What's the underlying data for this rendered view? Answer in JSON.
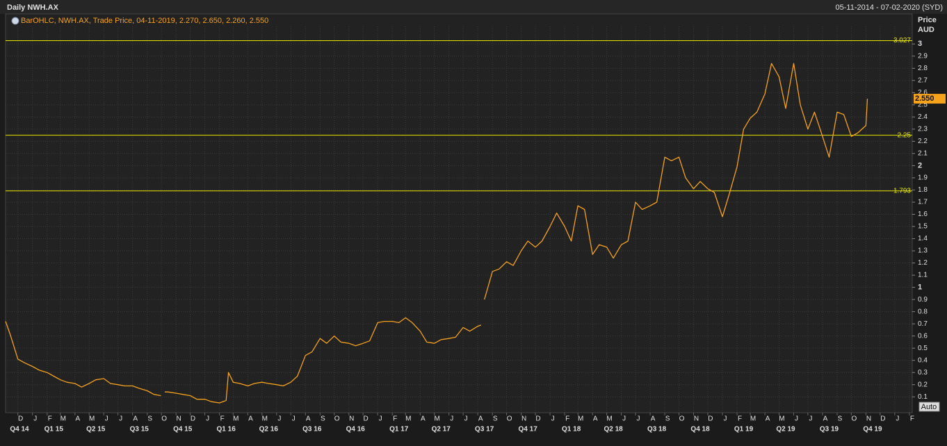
{
  "chart_data": {
    "type": "line",
    "title": "Daily NWH.AX",
    "date_range": "05-11-2014 - 07-02-2020 (SYD)",
    "legend_text": "BarOHLC, NWH.AX, Trade Price, 04-11-2019, 2.270, 2.650, 2.260, 2.550",
    "y_axis_title": [
      "Price",
      "AUD"
    ],
    "button": "Auto",
    "grid": true,
    "xlim": [
      "2014-11-05",
      "2020-02-07"
    ],
    "ylim": [
      0.05,
      3.11
    ],
    "yticks": [
      0.1,
      0.2,
      0.3,
      0.4,
      0.5,
      0.6,
      0.7,
      0.8,
      0.9,
      1,
      1.1,
      1.2,
      1.3,
      1.4,
      1.5,
      1.6,
      1.7,
      1.8,
      1.9,
      2,
      2.1,
      2.2,
      2.3,
      2.4,
      2.5,
      2.6,
      2.7,
      2.8,
      2.9,
      3
    ],
    "hlines": [
      3.027,
      2.25,
      1.793
    ],
    "hline_color": "#e6e600",
    "last_price": {
      "value": 2.55,
      "label": "2.550"
    },
    "month_ticks": [
      {
        "value": "2014-12-01",
        "label": "D"
      },
      {
        "value": "2015-01-01",
        "label": "J"
      },
      {
        "value": "2015-02-01",
        "label": "F"
      },
      {
        "value": "2015-03-01",
        "label": "M"
      },
      {
        "value": "2015-04-01",
        "label": "A"
      },
      {
        "value": "2015-05-01",
        "label": "M"
      },
      {
        "value": "2015-06-01",
        "label": "J"
      },
      {
        "value": "2015-07-01",
        "label": "J"
      },
      {
        "value": "2015-08-01",
        "label": "A"
      },
      {
        "value": "2015-09-01",
        "label": "S"
      },
      {
        "value": "2015-10-01",
        "label": "O"
      },
      {
        "value": "2015-11-01",
        "label": "N"
      },
      {
        "value": "2015-12-01",
        "label": "D"
      },
      {
        "value": "2016-01-01",
        "label": "J"
      },
      {
        "value": "2016-02-01",
        "label": "F"
      },
      {
        "value": "2016-03-01",
        "label": "M"
      },
      {
        "value": "2016-04-01",
        "label": "A"
      },
      {
        "value": "2016-05-01",
        "label": "M"
      },
      {
        "value": "2016-06-01",
        "label": "J"
      },
      {
        "value": "2016-07-01",
        "label": "J"
      },
      {
        "value": "2016-08-01",
        "label": "A"
      },
      {
        "value": "2016-09-01",
        "label": "S"
      },
      {
        "value": "2016-10-01",
        "label": "O"
      },
      {
        "value": "2016-11-01",
        "label": "N"
      },
      {
        "value": "2016-12-01",
        "label": "D"
      },
      {
        "value": "2017-01-01",
        "label": "J"
      },
      {
        "value": "2017-02-01",
        "label": "F"
      },
      {
        "value": "2017-03-01",
        "label": "M"
      },
      {
        "value": "2017-04-01",
        "label": "A"
      },
      {
        "value": "2017-05-01",
        "label": "M"
      },
      {
        "value": "2017-06-01",
        "label": "J"
      },
      {
        "value": "2017-07-01",
        "label": "J"
      },
      {
        "value": "2017-08-01",
        "label": "A"
      },
      {
        "value": "2017-09-01",
        "label": "S"
      },
      {
        "value": "2017-10-01",
        "label": "O"
      },
      {
        "value": "2017-11-01",
        "label": "N"
      },
      {
        "value": "2017-12-01",
        "label": "D"
      },
      {
        "value": "2018-01-01",
        "label": "J"
      },
      {
        "value": "2018-02-01",
        "label": "F"
      },
      {
        "value": "2018-03-01",
        "label": "M"
      },
      {
        "value": "2018-04-01",
        "label": "A"
      },
      {
        "value": "2018-05-01",
        "label": "M"
      },
      {
        "value": "2018-06-01",
        "label": "J"
      },
      {
        "value": "2018-07-01",
        "label": "J"
      },
      {
        "value": "2018-08-01",
        "label": "A"
      },
      {
        "value": "2018-09-01",
        "label": "S"
      },
      {
        "value": "2018-10-01",
        "label": "O"
      },
      {
        "value": "2018-11-01",
        "label": "N"
      },
      {
        "value": "2018-12-01",
        "label": "D"
      },
      {
        "value": "2019-01-01",
        "label": "J"
      },
      {
        "value": "2019-02-01",
        "label": "F"
      },
      {
        "value": "2019-03-01",
        "label": "M"
      },
      {
        "value": "2019-04-01",
        "label": "A"
      },
      {
        "value": "2019-05-01",
        "label": "M"
      },
      {
        "value": "2019-06-01",
        "label": "J"
      },
      {
        "value": "2019-07-01",
        "label": "J"
      },
      {
        "value": "2019-08-01",
        "label": "A"
      },
      {
        "value": "2019-09-01",
        "label": "S"
      },
      {
        "value": "2019-10-01",
        "label": "O"
      },
      {
        "value": "2019-11-01",
        "label": "N"
      },
      {
        "value": "2019-12-01",
        "label": "D"
      },
      {
        "value": "2020-01-01",
        "label": "J"
      },
      {
        "value": "2020-02-01",
        "label": "F"
      }
    ],
    "quarter_ticks": [
      {
        "value": "2014-11-20",
        "label": "Q4 14"
      },
      {
        "value": "2015-02-15",
        "label": "Q1 15"
      },
      {
        "value": "2015-05-15",
        "label": "Q2 15"
      },
      {
        "value": "2015-08-15",
        "label": "Q3 15"
      },
      {
        "value": "2015-11-15",
        "label": "Q4 15"
      },
      {
        "value": "2016-02-15",
        "label": "Q1 16"
      },
      {
        "value": "2016-05-15",
        "label": "Q2 16"
      },
      {
        "value": "2016-08-15",
        "label": "Q3 16"
      },
      {
        "value": "2016-11-15",
        "label": "Q4 16"
      },
      {
        "value": "2017-02-15",
        "label": "Q1 17"
      },
      {
        "value": "2017-05-15",
        "label": "Q2 17"
      },
      {
        "value": "2017-08-15",
        "label": "Q3 17"
      },
      {
        "value": "2017-11-15",
        "label": "Q4 17"
      },
      {
        "value": "2018-02-15",
        "label": "Q1 18"
      },
      {
        "value": "2018-05-15",
        "label": "Q2 18"
      },
      {
        "value": "2018-08-15",
        "label": "Q3 18"
      },
      {
        "value": "2018-11-15",
        "label": "Q4 18"
      },
      {
        "value": "2019-02-15",
        "label": "Q1 19"
      },
      {
        "value": "2019-05-15",
        "label": "Q2 19"
      },
      {
        "value": "2019-08-15",
        "label": "Q3 19"
      },
      {
        "value": "2019-11-15",
        "label": "Q4 19"
      }
    ],
    "series": [
      {
        "name": "NWH.AX",
        "color": "#f7a21b",
        "x": [
          "2014-11-05",
          "2014-11-15",
          "2014-12-01",
          "2014-12-15",
          "2015-01-01",
          "2015-01-15",
          "2015-02-01",
          "2015-02-15",
          "2015-03-01",
          "2015-03-15",
          "2015-04-01",
          "2015-04-15",
          "2015-05-01",
          "2015-05-15",
          "2015-06-01",
          "2015-06-15",
          "2015-07-01",
          "2015-07-15",
          "2015-08-01",
          "2015-08-15",
          "2015-09-01",
          "2015-09-15",
          "2015-09-30",
          "2015-10-04",
          "2015-10-08",
          "2015-10-15",
          "2015-11-01",
          "2015-11-15",
          "2015-12-01",
          "2015-12-15",
          "2016-01-01",
          "2016-01-15",
          "2016-02-01",
          "2016-02-15",
          "2016-02-20",
          "2016-03-01",
          "2016-03-15",
          "2016-04-01",
          "2016-04-15",
          "2016-05-01",
          "2016-05-15",
          "2016-06-01",
          "2016-06-15",
          "2016-07-01",
          "2016-07-15",
          "2016-08-01",
          "2016-08-15",
          "2016-09-01",
          "2016-09-15",
          "2016-10-01",
          "2016-10-15",
          "2016-11-01",
          "2016-11-15",
          "2016-12-01",
          "2016-12-15",
          "2017-01-01",
          "2017-01-15",
          "2017-02-01",
          "2017-02-15",
          "2017-03-01",
          "2017-03-15",
          "2017-04-01",
          "2017-04-15",
          "2017-05-01",
          "2017-05-15",
          "2017-06-01",
          "2017-06-15",
          "2017-07-01",
          "2017-07-15",
          "2017-08-01",
          "2017-08-08",
          "2017-08-11",
          "2017-08-15",
          "2017-09-01",
          "2017-09-15",
          "2017-10-01",
          "2017-10-15",
          "2017-11-01",
          "2017-11-15",
          "2017-12-01",
          "2017-12-15",
          "2018-01-01",
          "2018-01-15",
          "2018-02-01",
          "2018-02-15",
          "2018-03-01",
          "2018-03-15",
          "2018-04-01",
          "2018-04-15",
          "2018-05-01",
          "2018-05-15",
          "2018-06-01",
          "2018-06-15",
          "2018-07-01",
          "2018-07-15",
          "2018-08-01",
          "2018-08-15",
          "2018-09-01",
          "2018-09-15",
          "2018-10-01",
          "2018-10-15",
          "2018-11-01",
          "2018-11-15",
          "2018-12-01",
          "2018-12-15",
          "2019-01-01",
          "2019-01-15",
          "2019-02-01",
          "2019-02-15",
          "2019-03-01",
          "2019-03-15",
          "2019-04-01",
          "2019-04-15",
          "2019-05-01",
          "2019-05-15",
          "2019-06-01",
          "2019-06-15",
          "2019-07-01",
          "2019-07-15",
          "2019-08-01",
          "2019-08-15",
          "2019-09-01",
          "2019-09-15",
          "2019-10-01",
          "2019-10-15",
          "2019-11-01",
          "2019-11-04"
        ],
        "values": [
          0.72,
          0.61,
          0.41,
          0.38,
          0.35,
          0.32,
          0.3,
          0.27,
          0.24,
          0.22,
          0.21,
          0.18,
          0.21,
          0.24,
          0.25,
          0.21,
          0.2,
          0.19,
          0.19,
          0.17,
          0.15,
          0.12,
          0.11,
          null,
          0.14,
          0.14,
          0.13,
          0.12,
          0.11,
          0.08,
          0.08,
          0.06,
          0.05,
          0.07,
          0.3,
          0.22,
          0.21,
          0.19,
          0.21,
          0.22,
          0.21,
          0.2,
          0.19,
          0.22,
          0.27,
          0.44,
          0.47,
          0.58,
          0.54,
          0.6,
          0.55,
          0.54,
          0.52,
          0.54,
          0.56,
          0.71,
          0.72,
          0.72,
          0.71,
          0.75,
          0.71,
          0.64,
          0.55,
          0.54,
          0.57,
          0.58,
          0.59,
          0.67,
          0.64,
          0.68,
          0.69,
          null,
          0.9,
          1.13,
          1.15,
          1.21,
          1.18,
          1.3,
          1.38,
          1.33,
          1.38,
          1.5,
          1.61,
          1.5,
          1.38,
          1.67,
          1.64,
          1.27,
          1.35,
          1.33,
          1.24,
          1.35,
          1.38,
          1.7,
          1.64,
          1.67,
          1.7,
          2.07,
          2.04,
          2.07,
          1.9,
          1.81,
          1.87,
          1.81,
          1.78,
          1.58,
          1.76,
          1.99,
          2.3,
          2.39,
          2.44,
          2.59,
          2.84,
          2.73,
          2.47,
          2.84,
          2.5,
          2.3,
          2.44,
          2.24,
          2.07,
          2.44,
          2.42,
          2.24,
          2.27,
          2.33,
          2.55
        ]
      }
    ]
  }
}
